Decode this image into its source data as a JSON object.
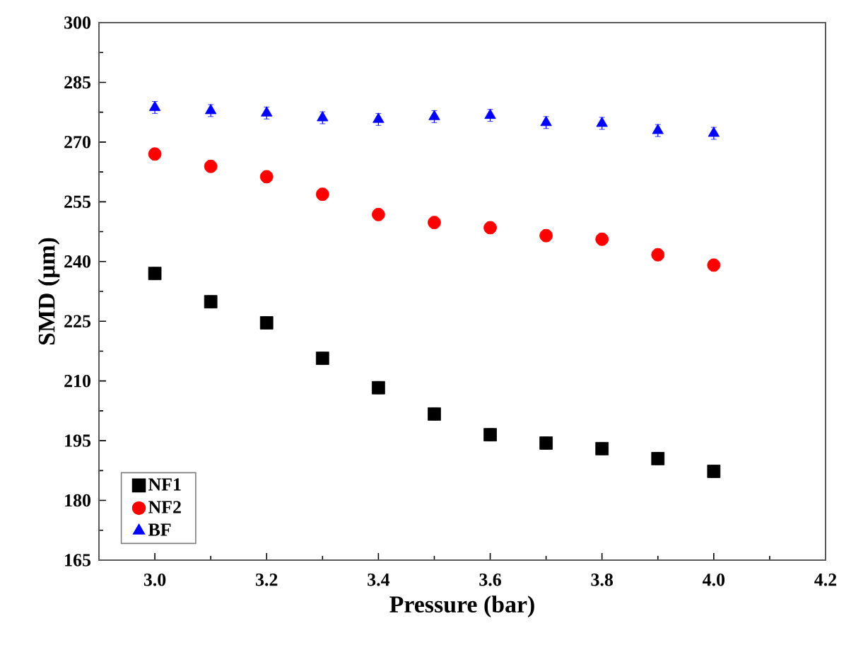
{
  "chart_data": {
    "type": "scatter",
    "xlabel": "Pressure (bar)",
    "ylabel": "SMD (μm)",
    "x": [
      3.0,
      3.1,
      3.2,
      3.3,
      3.4,
      3.5,
      3.6,
      3.7,
      3.8,
      3.9,
      4.0
    ],
    "series": [
      {
        "name": "NF1",
        "color": "#000000",
        "marker": "square",
        "values": [
          237.0,
          229.9,
          224.6,
          215.7,
          208.3,
          201.7,
          196.5,
          194.4,
          193.0,
          190.5,
          187.3
        ],
        "errors": [
          1.5,
          1.5,
          1.5,
          1.5,
          1.5,
          1.5,
          1.5,
          1.5,
          1.5,
          1.5,
          1.5
        ]
      },
      {
        "name": "NF2",
        "color": "#ff0000",
        "marker": "circle",
        "values": [
          267.0,
          263.9,
          261.3,
          256.9,
          251.8,
          249.8,
          248.5,
          246.5,
          245.6,
          241.7,
          239.1
        ],
        "errors": [
          1.5,
          1.5,
          1.5,
          1.5,
          1.5,
          1.5,
          1.5,
          1.5,
          1.5,
          1.5,
          1.5
        ]
      },
      {
        "name": "BF",
        "color": "#0000ff",
        "marker": "triangle",
        "values": [
          278.7,
          277.9,
          277.3,
          276.1,
          275.7,
          276.4,
          276.7,
          274.9,
          274.7,
          272.9,
          272.2
        ],
        "errors": [
          1.5,
          1.5,
          1.5,
          1.5,
          1.5,
          1.5,
          1.5,
          1.5,
          1.5,
          1.5,
          1.5
        ]
      }
    ],
    "xlim": [
      2.9,
      4.2
    ],
    "ylim": [
      165,
      300
    ],
    "xticks": [
      {
        "value": 3.0,
        "label": "3.0"
      },
      {
        "value": 3.2,
        "label": "3.2"
      },
      {
        "value": 3.4,
        "label": "3.4"
      },
      {
        "value": 3.6,
        "label": "3.6"
      },
      {
        "value": 3.8,
        "label": "3.8"
      },
      {
        "value": 4.0,
        "label": "4.0"
      },
      {
        "value": 4.2,
        "label": "4.2"
      }
    ],
    "yticks": [
      165,
      180,
      195,
      210,
      225,
      240,
      255,
      270,
      285,
      300
    ],
    "grid": false,
    "legend": "bottom left"
  }
}
